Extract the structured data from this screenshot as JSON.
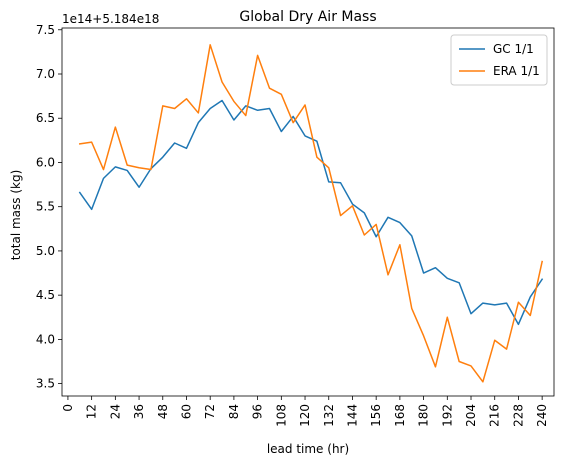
{
  "chart_data": {
    "type": "line",
    "title": "Global Dry Air Mass",
    "xlabel": "lead time (hr)",
    "ylabel": "total mass (kg)",
    "y_offset_label": "1e14+5.184e18",
    "xlim": [
      -3,
      246
    ],
    "ylim": [
      3.36,
      7.52
    ],
    "x_ticks": [
      0,
      12,
      24,
      36,
      48,
      60,
      72,
      84,
      96,
      108,
      120,
      132,
      144,
      156,
      168,
      180,
      192,
      204,
      216,
      228,
      240
    ],
    "y_ticks": [
      3.5,
      4.0,
      4.5,
      5.0,
      5.5,
      6.0,
      6.5,
      7.0,
      7.5
    ],
    "y_tick_labels": [
      "3.5",
      "4.0",
      "4.5",
      "5.0",
      "5.5",
      "6.0",
      "6.5",
      "7.0",
      "7.5"
    ],
    "grid": false,
    "legend_position": "top-right",
    "x": [
      6,
      12,
      18,
      24,
      30,
      36,
      42,
      48,
      54,
      60,
      66,
      72,
      78,
      84,
      90,
      96,
      102,
      108,
      114,
      120,
      126,
      132,
      138,
      144,
      150,
      156,
      162,
      168,
      174,
      180,
      186,
      192,
      198,
      204,
      210,
      216,
      222,
      228,
      234,
      240
    ],
    "series": [
      {
        "name": "GC 1/1",
        "color": "#1f77b4",
        "values": [
          5.66,
          5.47,
          5.82,
          5.95,
          5.91,
          5.72,
          5.93,
          6.06,
          6.22,
          6.16,
          6.45,
          6.61,
          6.7,
          6.48,
          6.64,
          6.59,
          6.61,
          6.35,
          6.52,
          6.3,
          6.24,
          5.78,
          5.77,
          5.53,
          5.43,
          5.16,
          5.38,
          5.32,
          5.17,
          4.75,
          4.81,
          4.69,
          4.64,
          4.29,
          4.41,
          4.39,
          4.41,
          4.17,
          4.48,
          4.68
        ]
      },
      {
        "name": "ERA 1/1",
        "color": "#ff7f0e",
        "values": [
          6.21,
          6.23,
          5.92,
          6.4,
          5.97,
          5.94,
          5.92,
          6.64,
          6.61,
          6.72,
          6.56,
          7.33,
          6.91,
          6.69,
          6.53,
          7.21,
          6.84,
          6.77,
          6.45,
          6.65,
          6.06,
          5.94,
          5.4,
          5.51,
          5.18,
          5.3,
          4.73,
          5.07,
          4.35,
          4.04,
          3.69,
          4.25,
          3.75,
          3.7,
          3.52,
          3.99,
          3.89,
          4.42,
          4.27,
          4.88
        ]
      }
    ]
  }
}
